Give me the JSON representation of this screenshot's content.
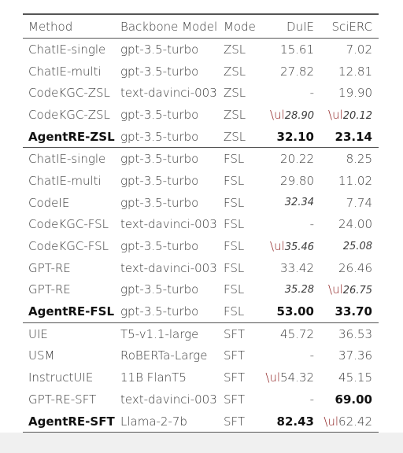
{
  "table": {
    "columns": [
      "Method",
      "Backbone Model",
      "Mode",
      "DuIE",
      "SciERC"
    ],
    "rows": [
      {
        "method": "ChatIE-single",
        "backbone": "gpt-3.5-turbo",
        "mode": "ZSL",
        "duie": "15.61",
        "scierc": "7.02"
      },
      {
        "method": "ChatIE-multi",
        "backbone": "gpt-3.5-turbo",
        "mode": "ZSL",
        "duie": "27.82",
        "scierc": "12.81"
      },
      {
        "method": "CodeKGC-ZSL",
        "backbone": "text-davinci-003",
        "mode": "ZSL",
        "duie": "-",
        "scierc": "19.90"
      },
      {
        "method": "CodeKGC-ZSL",
        "backbone": "gpt-3.5-turbo",
        "mode": "ZSL",
        "duie": "28.90",
        "scierc": "20.12",
        "duie_marker": "\\ul",
        "scierc_marker": "\\ul",
        "duie_style": "it",
        "scierc_style": "it"
      },
      {
        "method": "AgentRE-ZSL",
        "backbone": "gpt-3.5-turbo",
        "mode": "ZSL",
        "duie": "32.10",
        "scierc": "23.14",
        "bold_method": true,
        "duie_style": "bold",
        "scierc_style": "bold",
        "group_end": true
      },
      {
        "method": "ChatIE-single",
        "backbone": "gpt-3.5-turbo",
        "mode": "FSL",
        "duie": "20.22",
        "scierc": "8.25"
      },
      {
        "method": "ChatIE-multi",
        "backbone": "gpt-3.5-turbo",
        "mode": "FSL",
        "duie": "29.80",
        "scierc": "11.02"
      },
      {
        "method": "CodeIE",
        "backbone": "gpt-3.5-turbo",
        "mode": "FSL",
        "duie": "32.34",
        "scierc": "7.74",
        "duie_style": "it"
      },
      {
        "method": "CodeKGC-FSL",
        "backbone": "text-davinci-003",
        "mode": "FSL",
        "duie": "-",
        "scierc": "24.00"
      },
      {
        "method": "CodeKGC-FSL",
        "backbone": "gpt-3.5-turbo",
        "mode": "FSL",
        "duie": "35.46",
        "scierc": "25.08",
        "duie_marker": "\\ul",
        "duie_style": "it",
        "scierc_style": "it"
      },
      {
        "method": "GPT-RE",
        "backbone": "text-davinci-003",
        "mode": "FSL",
        "duie": "33.42",
        "scierc": "26.46"
      },
      {
        "method": "GPT-RE",
        "backbone": "gpt-3.5-turbo",
        "mode": "FSL",
        "duie": "35.28",
        "scierc": "26.75",
        "scierc_marker": "\\ul",
        "duie_style": "it",
        "scierc_style": "it"
      },
      {
        "method": "AgentRE-FSL",
        "backbone": "gpt-3.5-turbo",
        "mode": "FSL",
        "duie": "53.00",
        "scierc": "33.70",
        "bold_method": true,
        "duie_style": "bold",
        "scierc_style": "bold",
        "group_end": true
      },
      {
        "method": "UIE",
        "backbone": "T5-v1.1-large",
        "mode": "SFT",
        "duie": "45.72",
        "scierc": "36.53"
      },
      {
        "method": "USM",
        "backbone": "RoBERTa-Large",
        "mode": "SFT",
        "duie": "-",
        "scierc": "37.36"
      },
      {
        "method": "InstructUIE",
        "backbone": "11B FlanT5",
        "mode": "SFT",
        "duie": "54.32",
        "scierc": "45.15",
        "duie_marker": "\\ul"
      },
      {
        "method": "GPT-RE-SFT",
        "backbone": "text-davinci-003",
        "mode": "SFT",
        "duie": "-",
        "scierc": "69.00",
        "scierc_style": "bold"
      },
      {
        "method": "AgentRE-SFT",
        "backbone": "Llama-2-7b",
        "mode": "SFT",
        "duie": "82.43",
        "scierc": "62.42",
        "bold_method": true,
        "duie_style": "bold",
        "scierc_marker": "\\ul",
        "table_end": true
      }
    ]
  }
}
